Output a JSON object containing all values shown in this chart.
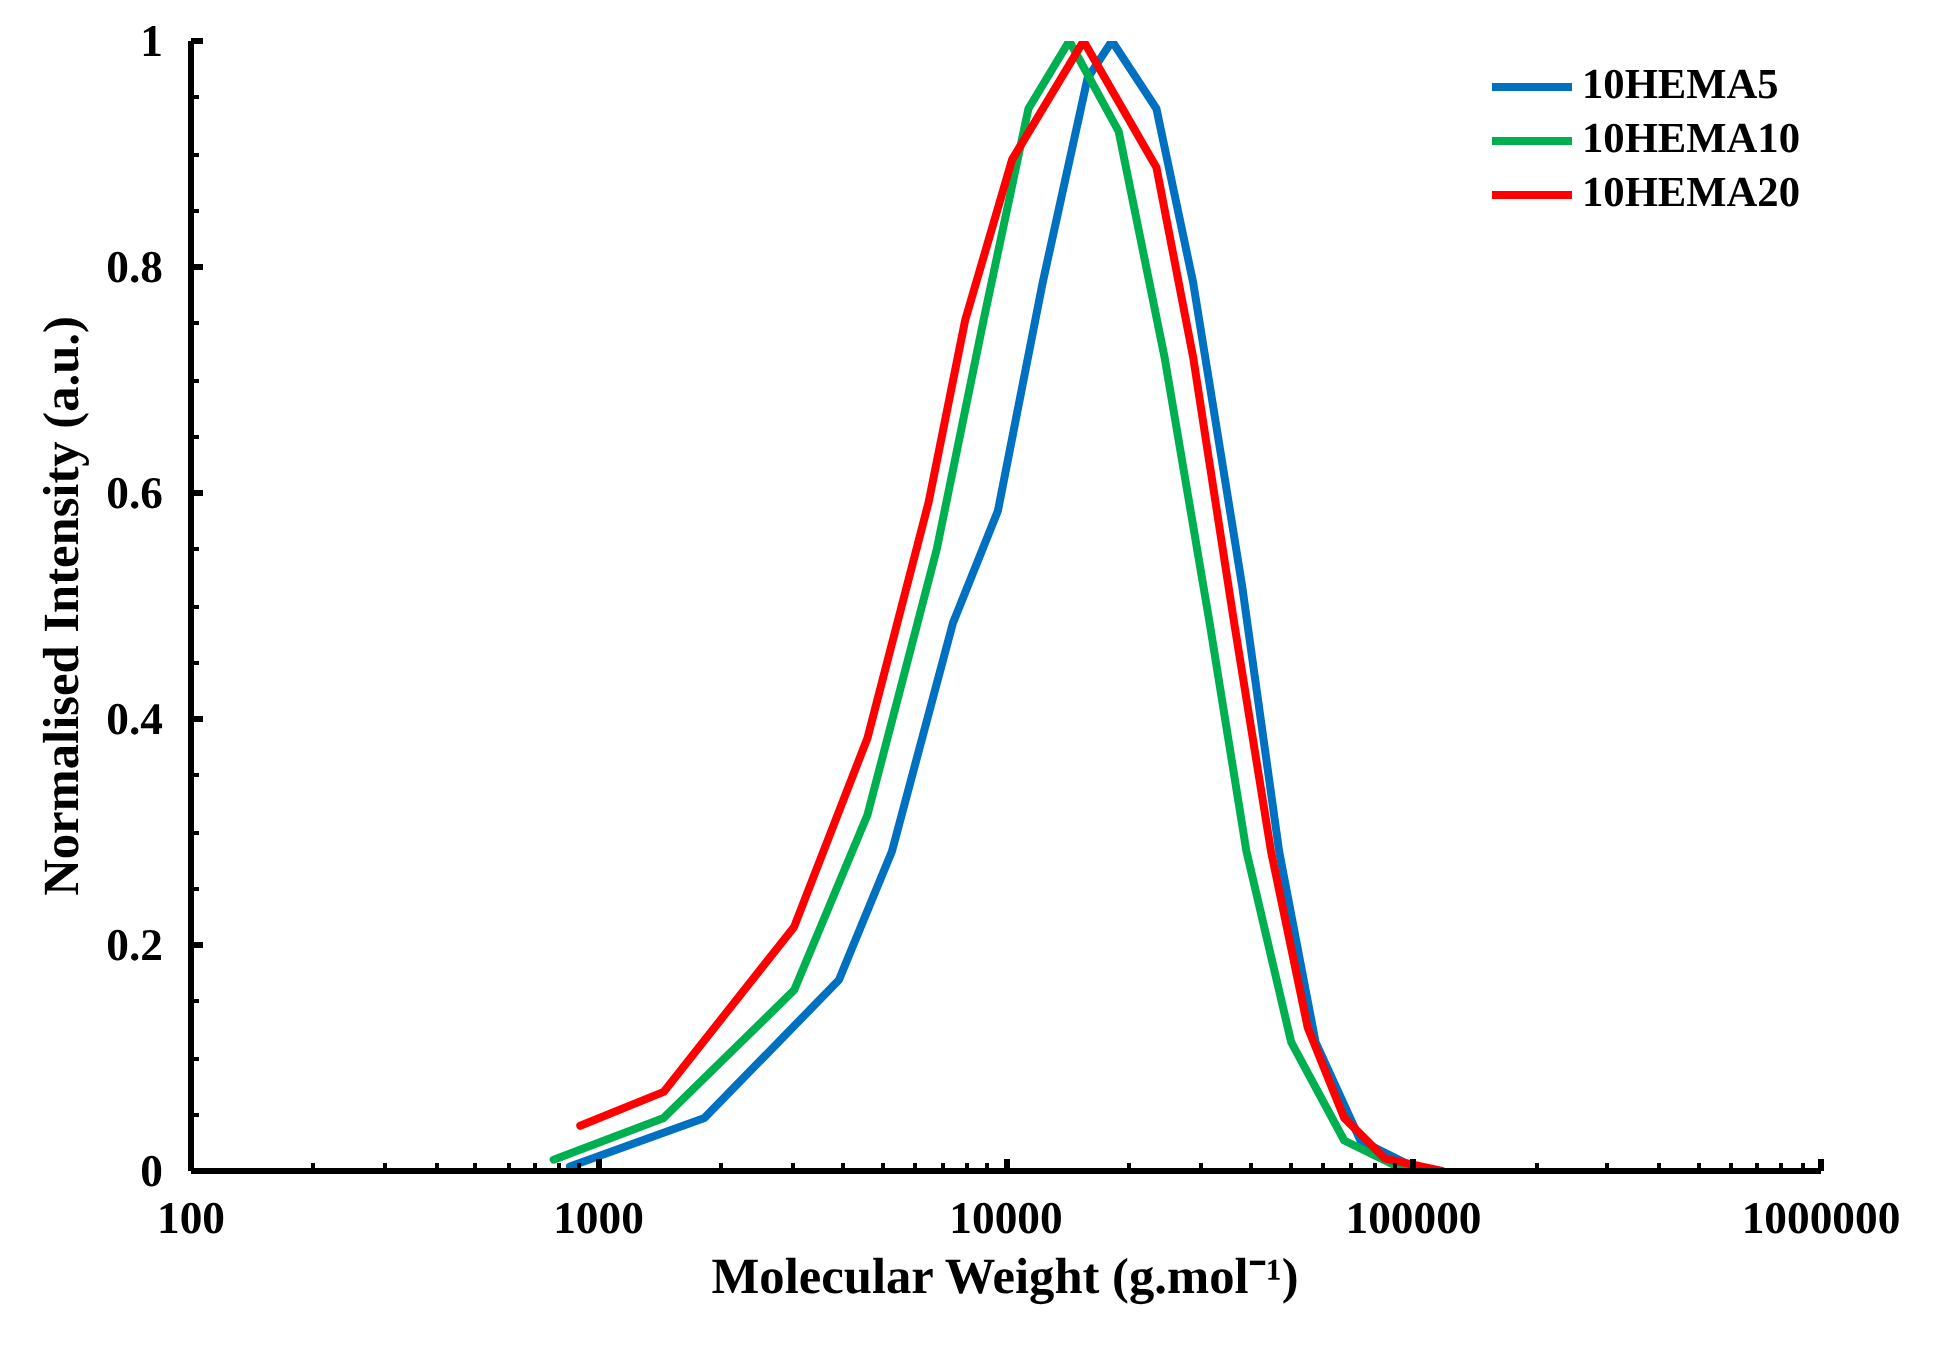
{
  "chart_data": {
    "type": "line",
    "xlabel": "Molecular Weight (g.mol⁻¹)",
    "ylabel": "Normalised Intensity (a.u.)",
    "log": "x",
    "grid": false,
    "legend": "top right",
    "marker": "none",
    "line_style": "solid",
    "xlim": [
      100,
      1000000
    ],
    "xticks": [
      100,
      1000,
      10000,
      100000,
      1000000
    ],
    "ylim": [
      0,
      1.0
    ],
    "yticks": [
      0,
      0.2,
      0.4,
      0.6,
      0.8,
      1
    ],
    "series": [
      {
        "name": "10HEMA5",
        "color": "#0070c0",
        "x": [
          851,
          1820,
          3890,
          5250,
          7410,
          9550,
          12300,
          15850,
          18200,
          23400,
          28800,
          38000,
          46800,
          57500,
          74100,
          104700
        ],
        "values": [
          0.004,
          0.047,
          0.169,
          0.283,
          0.485,
          0.584,
          0.786,
          0.967,
          1.0,
          0.94,
          0.786,
          0.517,
          0.283,
          0.114,
          0.027,
          0.0
        ]
      },
      {
        "name": "10HEMA10",
        "color": "#00b050",
        "x": [
          776,
          1445,
          3020,
          4570,
          6760,
          8810,
          11350,
          14300,
          18900,
          24500,
          31600,
          38900,
          50100,
          67600,
          91200,
          112000
        ],
        "values": [
          0.01,
          0.047,
          0.16,
          0.315,
          0.55,
          0.753,
          0.94,
          1.0,
          0.92,
          0.72,
          0.485,
          0.283,
          0.114,
          0.027,
          0.004,
          0.0
        ]
      },
      {
        "name": "10HEMA20",
        "color": "#ff0000",
        "x": [
          902,
          1445,
          3020,
          4570,
          6460,
          7940,
          10350,
          15500,
          23400,
          28800,
          36300,
          44700,
          55000,
          67600,
          85100,
          117500
        ],
        "values": [
          0.04,
          0.07,
          0.216,
          0.383,
          0.592,
          0.753,
          0.895,
          1.0,
          0.888,
          0.72,
          0.485,
          0.283,
          0.127,
          0.047,
          0.011,
          0.0
        ]
      }
    ]
  }
}
